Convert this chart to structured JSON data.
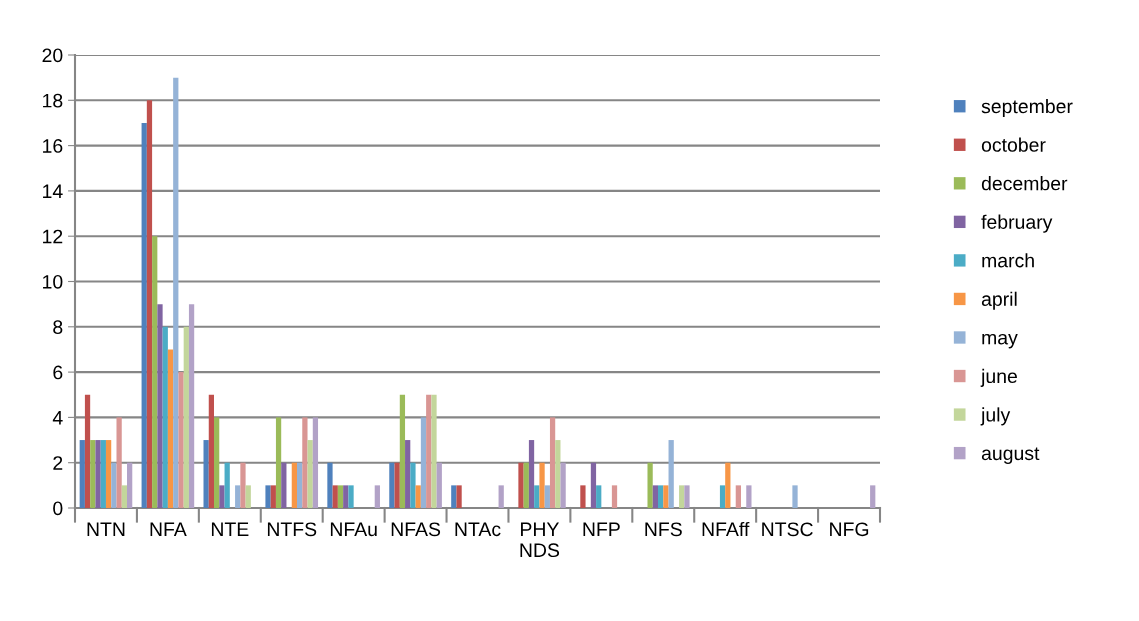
{
  "chart_data": {
    "type": "bar",
    "categories": [
      "NTN",
      "NFA",
      "NTE",
      "NTFS",
      "NFAu",
      "NFAS",
      "NTAc",
      "PHY NDS",
      "NFP",
      "NFS",
      "NFAff",
      "NTSC",
      "NFG"
    ],
    "series": [
      {
        "name": "september",
        "color": "#4f81bd",
        "values": [
          3,
          17,
          3,
          1,
          2,
          2,
          1,
          0,
          0,
          0,
          0,
          0,
          0
        ]
      },
      {
        "name": "october",
        "color": "#c0504d",
        "values": [
          5,
          18,
          5,
          1,
          1,
          2,
          1,
          2,
          1,
          0,
          0,
          0,
          0
        ]
      },
      {
        "name": "december",
        "color": "#9bbb59",
        "values": [
          3,
          12,
          4,
          4,
          1,
          5,
          0,
          2,
          0,
          2,
          0,
          0,
          0
        ]
      },
      {
        "name": "february",
        "color": "#8064a2",
        "values": [
          3,
          9,
          1,
          2,
          1,
          3,
          0,
          3,
          2,
          1,
          0,
          0,
          0
        ]
      },
      {
        "name": "march",
        "color": "#4bacc6",
        "values": [
          3,
          8,
          2,
          0,
          1,
          2,
          0,
          1,
          1,
          1,
          1,
          0,
          0
        ]
      },
      {
        "name": "april",
        "color": "#f79646",
        "values": [
          3,
          7,
          0,
          2,
          0,
          1,
          0,
          2,
          0,
          1,
          2,
          0,
          0
        ]
      },
      {
        "name": "may",
        "color": "#95b3d7",
        "values": [
          2,
          19,
          1,
          2,
          0,
          4,
          0,
          1,
          0,
          3,
          0,
          1,
          0
        ]
      },
      {
        "name": "june",
        "color": "#d99694",
        "values": [
          4,
          6,
          2,
          4,
          0,
          5,
          0,
          4,
          1,
          0,
          1,
          0,
          0
        ]
      },
      {
        "name": "july",
        "color": "#c3d69b",
        "values": [
          1,
          8,
          1,
          3,
          0,
          5,
          0,
          3,
          0,
          1,
          0,
          0,
          0
        ]
      },
      {
        "name": "august",
        "color": "#b2a2c7",
        "values": [
          2,
          9,
          0,
          4,
          1,
          2,
          1,
          2,
          0,
          1,
          1,
          0,
          1
        ]
      }
    ],
    "ylim": [
      0,
      20
    ],
    "yticks": [
      0,
      2,
      4,
      6,
      8,
      10,
      12,
      14,
      16,
      18,
      20
    ],
    "grid": "y",
    "legend": "right"
  }
}
